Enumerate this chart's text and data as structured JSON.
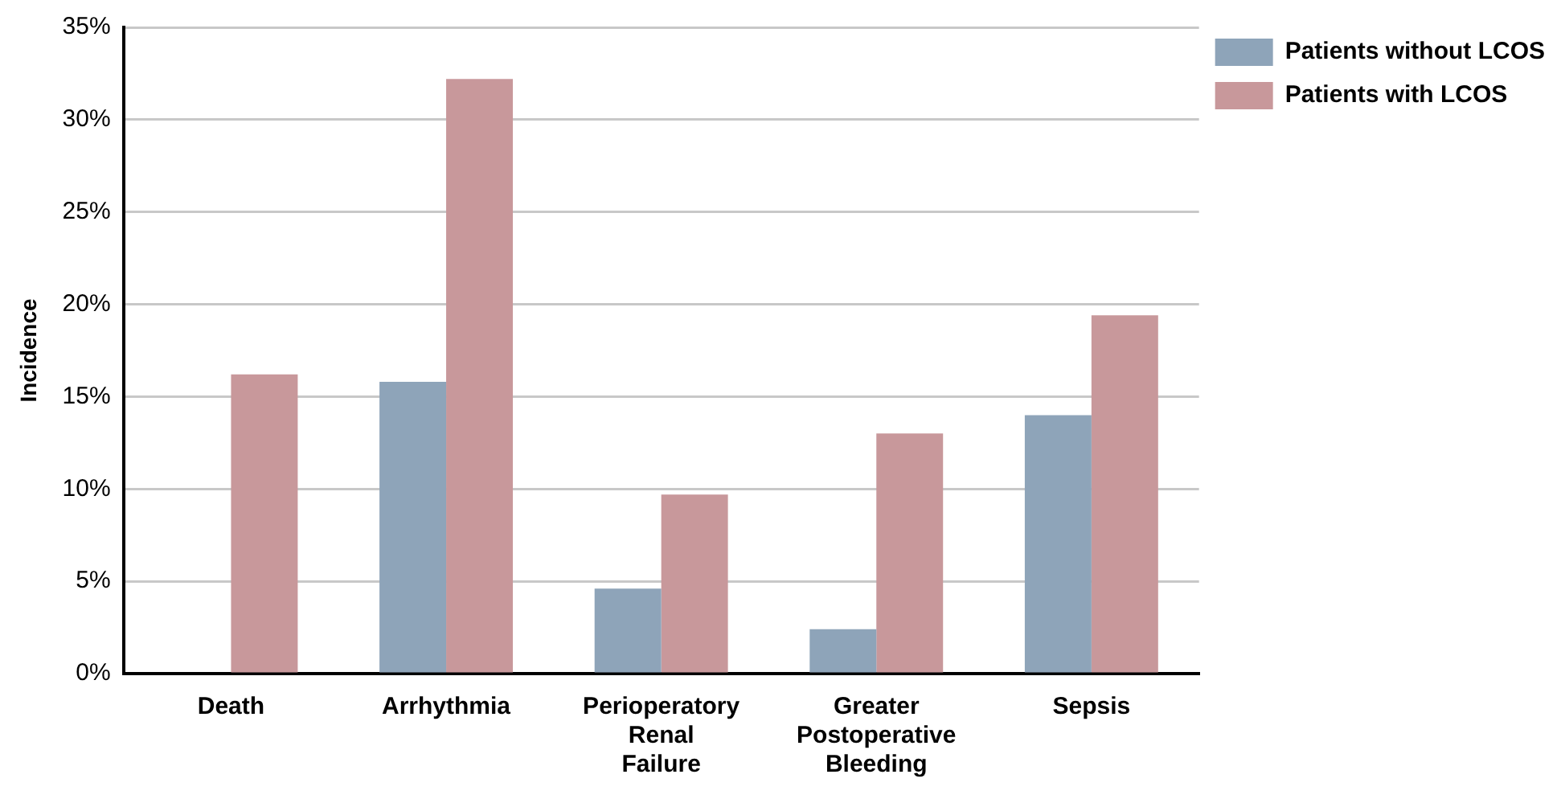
{
  "chart_data": {
    "type": "bar",
    "ylabel": "Incidence",
    "categories": [
      "Death",
      "Arrhythmia",
      "Perioperatory Renal Failure",
      "Greater Postoperative Bleeding",
      "Sepsis"
    ],
    "series": [
      {
        "name": "Patients without LCOS",
        "color": "#8ea4b9",
        "values": [
          0,
          15.8,
          4.6,
          2.4,
          14.0
        ]
      },
      {
        "name": "Patients with LCOS",
        "color": "#c8989b",
        "values": [
          16.2,
          32.2,
          9.7,
          13.0,
          19.4
        ]
      }
    ],
    "ylim": [
      0,
      35
    ],
    "yticks": [
      {
        "value": 0,
        "label": "0%"
      },
      {
        "value": 5,
        "label": "5%"
      },
      {
        "value": 10,
        "label": "10%"
      },
      {
        "value": 15,
        "label": "15%"
      },
      {
        "value": 20,
        "label": "20%"
      },
      {
        "value": 25,
        "label": "25%"
      },
      {
        "value": 30,
        "label": "30%"
      },
      {
        "value": 35,
        "label": "35%"
      }
    ],
    "grid": "y",
    "legend": "top right"
  }
}
